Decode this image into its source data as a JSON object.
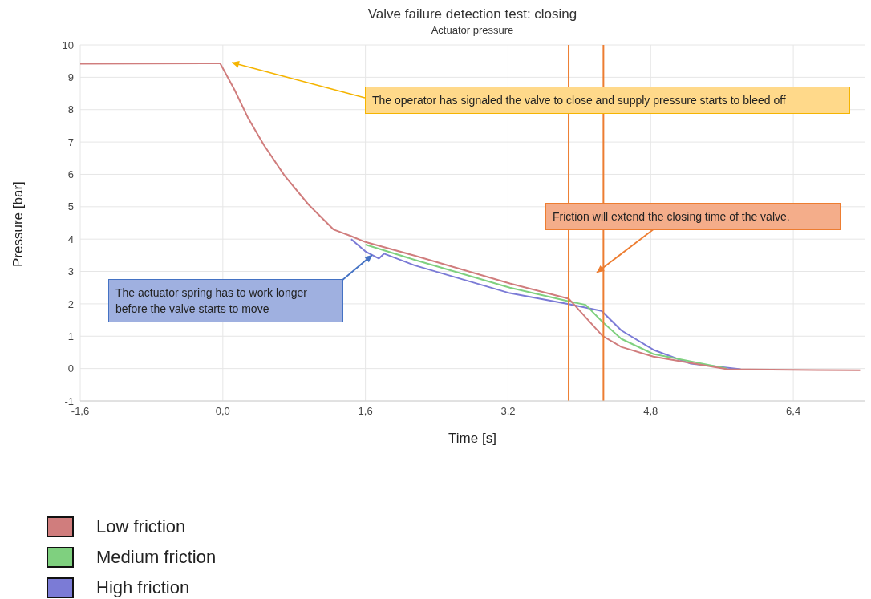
{
  "chart_data": {
    "type": "line",
    "title": "Valve failure detection test: closing",
    "subtitle": "Actuator pressure",
    "xlabel": "Time [s]",
    "ylabel": "Pressure [bar]",
    "xlim": [
      -1.6,
      7.2
    ],
    "xticks": [
      {
        "value": -1.6,
        "label": "-1,6"
      },
      {
        "value": 0,
        "label": "0,0"
      },
      {
        "value": 1.6,
        "label": "1,6"
      },
      {
        "value": 3.2,
        "label": "3,2"
      },
      {
        "value": 4.8,
        "label": "4,8"
      },
      {
        "value": 6.4,
        "label": "6,4"
      }
    ],
    "ylim": [
      -1,
      10
    ],
    "yticks": [
      -1,
      0,
      1,
      2,
      3,
      4,
      5,
      6,
      7,
      8,
      9,
      10
    ],
    "grid": true,
    "legend": "bottom",
    "marker": "none",
    "line_style": "solid",
    "series": [
      {
        "name": "Low friction",
        "color": "#d07d7d",
        "x": [
          -1.6,
          -0.03,
          0.13,
          0.28,
          0.46,
          0.69,
          0.96,
          1.24,
          1.44,
          1.6,
          2.15,
          3.22,
          3.88,
          4.26,
          4.47,
          4.83,
          5.66,
          6.4,
          7.15
        ],
        "values": [
          9.42,
          9.43,
          8.62,
          7.76,
          6.91,
          5.97,
          5.07,
          4.3,
          4.09,
          3.91,
          3.49,
          2.63,
          2.16,
          1.01,
          0.67,
          0.37,
          -0.02,
          -0.04,
          -0.05
        ]
      },
      {
        "name": "Medium friction",
        "color": "#7fd07f",
        "x": [
          1.6,
          2.15,
          3.22,
          3.88,
          4.07,
          4.26,
          4.47,
          4.83,
          5.66
        ],
        "values": [
          3.83,
          3.36,
          2.5,
          2.08,
          1.97,
          1.44,
          0.92,
          0.45,
          0
        ]
      },
      {
        "name": "High friction",
        "color": "#7b7bd6",
        "x": [
          1.44,
          1.6,
          1.75,
          1.81,
          2.15,
          3.22,
          3.88,
          4.25,
          4.47,
          4.83,
          5.25,
          5.81
        ],
        "values": [
          4.0,
          3.62,
          3.4,
          3.55,
          3.19,
          2.33,
          1.99,
          1.78,
          1.18,
          0.58,
          0.15,
          -0.02
        ]
      }
    ],
    "ref_lines": [
      {
        "axis": "x",
        "value": 3.88,
        "color": "#ed7d31"
      },
      {
        "axis": "x",
        "value": 4.27,
        "color": "#ed7d31"
      }
    ],
    "annotations": [
      "The operator has signaled the valve to close and supply pressure starts to bleed off",
      "The actuator spring has to work longer before the valve starts to move",
      "Friction will extend the closing time of the valve."
    ]
  }
}
